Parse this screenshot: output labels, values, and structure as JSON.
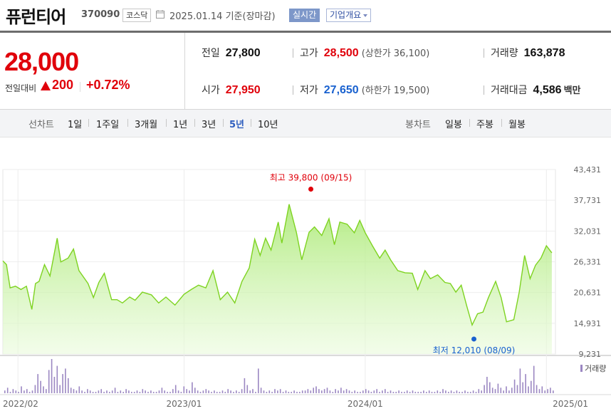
{
  "header": {
    "stock_name": "퓨런티어",
    "stock_code": "370090",
    "market": "코스닥",
    "date": "2025.01.14",
    "basis": "기준(장마감)",
    "realtime_button": "실시간",
    "overview_button": "기업개요"
  },
  "price": {
    "current": "28,000",
    "change_label": "전일대비",
    "change_value": "200",
    "change_percent": "+0.72%"
  },
  "stats": {
    "prev_close_label": "전일",
    "prev_close": "27,800",
    "high_label": "고가",
    "high": "28,500",
    "upper_limit": "(상한가 36,100)",
    "volume_label": "거래량",
    "volume": "163,878",
    "open_label": "시가",
    "open": "27,950",
    "low_label": "저가",
    "low": "27,650",
    "lower_limit": "(하한가 19,500)",
    "trade_value_label": "거래대금",
    "trade_value": "4,586",
    "trade_value_unit": "백만"
  },
  "tabs": {
    "line_label": "선차트",
    "line_periods": [
      "1일",
      "1주일",
      "3개월",
      "1년",
      "3년",
      "5년",
      "10년"
    ],
    "active_period": "5년",
    "candle_label": "봉차트",
    "candle_periods": [
      "일봉",
      "주봉",
      "월봉"
    ]
  },
  "colors": {
    "up": "#e0000a",
    "down": "#1961cf",
    "line": "#7ed321",
    "volume": "#9b87c2"
  },
  "chart_data": {
    "type": "area",
    "x_labels": [
      "2022/02",
      "2023/01",
      "2024/01",
      "2025/01"
    ],
    "y_ticks": [
      "43,431",
      "37,731",
      "32,031",
      "26,331",
      "20,631",
      "14,931",
      "9,231"
    ],
    "ylim": [
      9231,
      43431
    ],
    "x_range": [
      "2022/01",
      "2025/01"
    ],
    "series": [
      {
        "values": [
          [
            2022.0,
            26500
          ],
          [
            2022.02,
            25800
          ],
          [
            2022.04,
            21500
          ],
          [
            2022.07,
            21800
          ],
          [
            2022.1,
            21200
          ],
          [
            2022.13,
            21800
          ],
          [
            2022.16,
            17500
          ],
          [
            2022.18,
            22300
          ],
          [
            2022.2,
            22700
          ],
          [
            2022.23,
            25800
          ],
          [
            2022.26,
            23700
          ],
          [
            2022.3,
            30700
          ],
          [
            2022.32,
            26300
          ],
          [
            2022.36,
            27000
          ],
          [
            2022.39,
            28700
          ],
          [
            2022.42,
            24700
          ],
          [
            2022.47,
            22300
          ],
          [
            2022.5,
            19700
          ],
          [
            2022.53,
            22500
          ],
          [
            2022.56,
            24200
          ],
          [
            2022.6,
            19300
          ],
          [
            2022.63,
            19300
          ],
          [
            2022.66,
            18700
          ],
          [
            2022.7,
            19800
          ],
          [
            2022.73,
            19200
          ],
          [
            2022.77,
            20700
          ],
          [
            2022.82,
            20200
          ],
          [
            2022.86,
            18700
          ],
          [
            2022.9,
            19800
          ],
          [
            2022.95,
            18300
          ],
          [
            2023.0,
            20300
          ],
          [
            2023.04,
            21200
          ],
          [
            2023.08,
            22000
          ],
          [
            2023.12,
            21500
          ],
          [
            2023.16,
            24700
          ],
          [
            2023.2,
            19300
          ],
          [
            2023.24,
            20700
          ],
          [
            2023.28,
            18700
          ],
          [
            2023.32,
            22700
          ],
          [
            2023.36,
            25200
          ],
          [
            2023.39,
            30500
          ],
          [
            2023.42,
            27500
          ],
          [
            2023.45,
            30700
          ],
          [
            2023.48,
            28500
          ],
          [
            2023.52,
            33700
          ],
          [
            2023.54,
            29800
          ],
          [
            2023.58,
            37000
          ],
          [
            2023.62,
            31800
          ],
          [
            2023.65,
            26700
          ],
          [
            2023.69,
            31800
          ],
          [
            2023.72,
            32800
          ],
          [
            2023.76,
            31200
          ],
          [
            2023.8,
            34300
          ],
          [
            2023.83,
            29500
          ],
          [
            2023.86,
            33700
          ],
          [
            2023.9,
            33300
          ],
          [
            2023.94,
            31700
          ],
          [
            2023.97,
            34000
          ],
          [
            2024.0,
            31700
          ],
          [
            2024.04,
            29300
          ],
          [
            2024.08,
            27000
          ],
          [
            2024.11,
            28500
          ],
          [
            2024.14,
            26700
          ],
          [
            2024.18,
            24700
          ],
          [
            2024.22,
            24300
          ],
          [
            2024.26,
            24200
          ],
          [
            2024.29,
            21200
          ],
          [
            2024.33,
            24700
          ],
          [
            2024.36,
            23200
          ],
          [
            2024.4,
            23900
          ],
          [
            2024.44,
            22500
          ],
          [
            2024.47,
            22300
          ],
          [
            2024.5,
            20700
          ],
          [
            2024.53,
            22000
          ],
          [
            2024.56,
            18200
          ],
          [
            2024.59,
            14600
          ],
          [
            2024.62,
            16700
          ],
          [
            2024.65,
            17000
          ],
          [
            2024.68,
            19700
          ],
          [
            2024.72,
            22700
          ],
          [
            2024.75,
            19700
          ],
          [
            2024.78,
            15200
          ],
          [
            2024.82,
            15600
          ],
          [
            2024.85,
            20700
          ],
          [
            2024.88,
            27500
          ],
          [
            2024.91,
            23200
          ],
          [
            2024.94,
            25700
          ],
          [
            2024.97,
            27000
          ],
          [
            2025.0,
            29300
          ],
          [
            2025.03,
            28000
          ]
        ]
      }
    ],
    "annotations": [
      {
        "label": "최고",
        "value": "39,800",
        "date": "(09/15)",
        "x": 2023.7,
        "y": 39800,
        "color": "#e0000a"
      },
      {
        "label": "최저",
        "value": "12,010",
        "date": "(08/09)",
        "x": 2024.6,
        "y": 12010,
        "color": "#1961cf"
      }
    ],
    "volume_label": "거래량",
    "volume": [
      2,
      4,
      1,
      3,
      2,
      1,
      5,
      2,
      3,
      1,
      2,
      6,
      14,
      9,
      5,
      3,
      17,
      25,
      12,
      20,
      6,
      14,
      18,
      11,
      4,
      3,
      2,
      5,
      2,
      1,
      3,
      2,
      1,
      1,
      2,
      3,
      1,
      2,
      1,
      2,
      4,
      1,
      2,
      1,
      3,
      2,
      1,
      1,
      2,
      1,
      3,
      2,
      1,
      2,
      1,
      1,
      2,
      4,
      2,
      1,
      1,
      3,
      6,
      2,
      1,
      5,
      3,
      2,
      8,
      4,
      2,
      1,
      2,
      3,
      2,
      1,
      2,
      1,
      1,
      2,
      1,
      3,
      2,
      1,
      2,
      1,
      3,
      11,
      6,
      2,
      3,
      1,
      18,
      4,
      2,
      1,
      2,
      1,
      3,
      2,
      3,
      1,
      2,
      1,
      1,
      2,
      1,
      1,
      2,
      2,
      3,
      2,
      4,
      5,
      3,
      2,
      3,
      4,
      2,
      1,
      3,
      2,
      4,
      2,
      3,
      2,
      1,
      2,
      1,
      1,
      2,
      3,
      2,
      1,
      2,
      3,
      1,
      2,
      3,
      1,
      2,
      1,
      1,
      2,
      1,
      1,
      2,
      1,
      2,
      1,
      1,
      1,
      2,
      1,
      2,
      1,
      1,
      2,
      1,
      3,
      2,
      1,
      2,
      1,
      2,
      1,
      1,
      2,
      1,
      1,
      2,
      1,
      3,
      2,
      6,
      12,
      8,
      4,
      3,
      7,
      4,
      2,
      5,
      2,
      4,
      10,
      6,
      18,
      8,
      14,
      5,
      9,
      20,
      6,
      3,
      5,
      2,
      3,
      4,
      2
    ]
  }
}
